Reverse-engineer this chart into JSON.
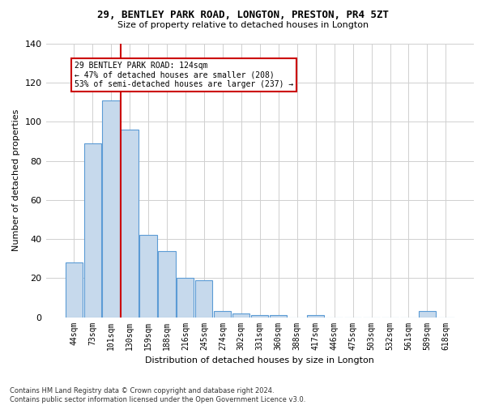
{
  "title1": "29, BENTLEY PARK ROAD, LONGTON, PRESTON, PR4 5ZT",
  "title2": "Size of property relative to detached houses in Longton",
  "xlabel": "Distribution of detached houses by size in Longton",
  "ylabel": "Number of detached properties",
  "footnote1": "Contains HM Land Registry data © Crown copyright and database right 2024.",
  "footnote2": "Contains public sector information licensed under the Open Government Licence v3.0.",
  "annotation_line1": "29 BENTLEY PARK ROAD: 124sqm",
  "annotation_line2": "← 47% of detached houses are smaller (208)",
  "annotation_line3": "53% of semi-detached houses are larger (237) →",
  "bar_labels": [
    "44sqm",
    "73sqm",
    "101sqm",
    "130sqm",
    "159sqm",
    "188sqm",
    "216sqm",
    "245sqm",
    "274sqm",
    "302sqm",
    "331sqm",
    "360sqm",
    "388sqm",
    "417sqm",
    "446sqm",
    "475sqm",
    "503sqm",
    "532sqm",
    "561sqm",
    "589sqm",
    "618sqm"
  ],
  "bar_values": [
    28,
    89,
    111,
    96,
    42,
    34,
    20,
    19,
    3,
    2,
    1,
    1,
    0,
    1,
    0,
    0,
    0,
    0,
    0,
    3,
    0
  ],
  "bar_color": "#c6d9ec",
  "bar_edge_color": "#5b9bd5",
  "vline_color": "#cc0000",
  "box_color": "#cc0000",
  "ylim": [
    0,
    140
  ],
  "yticks": [
    0,
    20,
    40,
    60,
    80,
    100,
    120,
    140
  ],
  "background_color": "#ffffff",
  "grid_color": "#d0d0d0",
  "title1_fontsize": 9,
  "title2_fontsize": 8,
  "xlabel_fontsize": 8,
  "ylabel_fontsize": 8,
  "tick_fontsize": 7,
  "footnote_fontsize": 6
}
